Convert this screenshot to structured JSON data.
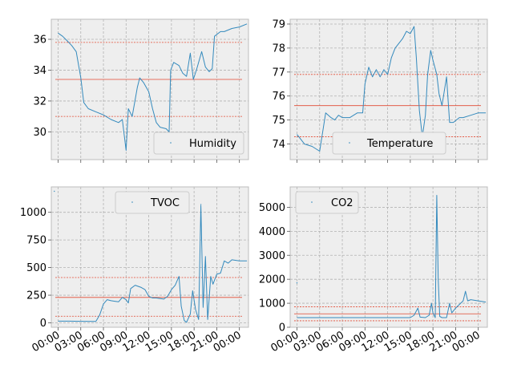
{
  "colors": {
    "figure_bg": "#ffffff",
    "axes_bg": "#eeeeee",
    "grid": "#b2b2b2",
    "frame": "#bcbcbc",
    "series": "#348abd",
    "hline": "#e24a33",
    "legend_bg": "#eeeeee",
    "legend_edge": "#cccccc"
  },
  "chart_data": [
    {
      "type": "line",
      "panel": "top-left",
      "series": [
        {
          "name": "Humidity"
        }
      ],
      "legend_loc": "lower-right",
      "ylim": [
        28.2,
        37.3
      ],
      "xlim": [
        -0.9,
        25.2
      ],
      "yticks": [
        30,
        32,
        34,
        36
      ],
      "ytick_labels": [
        "30",
        "32",
        "34",
        "36"
      ],
      "xticks": [
        0,
        3,
        6,
        9,
        12,
        15,
        18,
        21,
        24
      ],
      "xtick_labels": [],
      "hlines": [
        {
          "y": 35.8,
          "style": "dashed"
        },
        {
          "y": 33.4,
          "style": "solid"
        },
        {
          "y": 31.0,
          "style": "dashed"
        }
      ],
      "points": [
        [
          0,
          36.4
        ],
        [
          0.6,
          36.2
        ],
        [
          1.2,
          35.9
        ],
        [
          1.8,
          35.6
        ],
        [
          2.4,
          35.2
        ],
        [
          3,
          33.5
        ],
        [
          3.4,
          31.9
        ],
        [
          4,
          31.5
        ],
        [
          5,
          31.3
        ],
        [
          6,
          31.1
        ],
        [
          7,
          30.8
        ],
        [
          8,
          30.6
        ],
        [
          8.5,
          30.8
        ],
        [
          9,
          28.8
        ],
        [
          9.3,
          31.5
        ],
        [
          9.8,
          31.0
        ],
        [
          10.5,
          32.9
        ],
        [
          10.8,
          33.5
        ],
        [
          11.3,
          33.2
        ],
        [
          12,
          32.6
        ],
        [
          12.5,
          31.5
        ],
        [
          13,
          30.6
        ],
        [
          13.5,
          30.3
        ],
        [
          14.3,
          30.2
        ],
        [
          14.7,
          30.0
        ],
        [
          14.9,
          34.0
        ],
        [
          15.3,
          34.5
        ],
        [
          16,
          34.3
        ],
        [
          16.5,
          33.8
        ],
        [
          17,
          33.6
        ],
        [
          17.5,
          35.1
        ],
        [
          17.9,
          33.4
        ],
        [
          18.3,
          34.0
        ],
        [
          19,
          35.2
        ],
        [
          19.5,
          34.2
        ],
        [
          20,
          33.9
        ],
        [
          20.4,
          34.1
        ],
        [
          20.7,
          36.2
        ],
        [
          21.5,
          36.5
        ],
        [
          22,
          36.5
        ],
        [
          23,
          36.7
        ],
        [
          24,
          36.8
        ],
        [
          25,
          37.0
        ]
      ]
    },
    {
      "type": "line",
      "panel": "top-right",
      "series": [
        {
          "name": "Temperature"
        }
      ],
      "legend_loc": "lower-right",
      "ylim": [
        73.35,
        79.2
      ],
      "xlim": [
        -0.9,
        25.2
      ],
      "yticks": [
        74,
        75,
        76,
        77,
        78,
        79
      ],
      "ytick_labels": [
        "74",
        "75",
        "76",
        "77",
        "78",
        "79"
      ],
      "xticks": [
        0,
        3,
        6,
        9,
        12,
        15,
        18,
        21,
        24
      ],
      "xtick_labels": [],
      "hlines": [
        {
          "y": 76.9,
          "style": "dashed"
        },
        {
          "y": 75.6,
          "style": "solid"
        },
        {
          "y": 74.3,
          "style": "dashed"
        }
      ],
      "points": [
        [
          0,
          74.4
        ],
        [
          0.5,
          74.2
        ],
        [
          1,
          74.0
        ],
        [
          2,
          73.9
        ],
        [
          3,
          73.7
        ],
        [
          3.5,
          74.7
        ],
        [
          3.8,
          75.3
        ],
        [
          4.5,
          75.1
        ],
        [
          5,
          75.0
        ],
        [
          5.5,
          75.2
        ],
        [
          6,
          75.1
        ],
        [
          7,
          75.1
        ],
        [
          8,
          75.3
        ],
        [
          8.7,
          75.3
        ],
        [
          9,
          76.5
        ],
        [
          9.5,
          77.2
        ],
        [
          10,
          76.8
        ],
        [
          10.5,
          77.1
        ],
        [
          11,
          76.8
        ],
        [
          11.5,
          77.1
        ],
        [
          12,
          76.9
        ],
        [
          12.5,
          77.6
        ],
        [
          13,
          78.0
        ],
        [
          13.5,
          78.2
        ],
        [
          14,
          78.4
        ],
        [
          14.5,
          78.7
        ],
        [
          15,
          78.6
        ],
        [
          15.5,
          78.9
        ],
        [
          15.8,
          77.6
        ],
        [
          16.2,
          75.4
        ],
        [
          16.6,
          74.3
        ],
        [
          17,
          75.2
        ],
        [
          17.3,
          76.9
        ],
        [
          17.7,
          77.9
        ],
        [
          18,
          77.5
        ],
        [
          18.5,
          76.9
        ],
        [
          18.8,
          76.1
        ],
        [
          19.2,
          75.6
        ],
        [
          19.8,
          76.8
        ],
        [
          20.2,
          74.9
        ],
        [
          20.7,
          74.9
        ],
        [
          21.5,
          75.1
        ],
        [
          22,
          75.1
        ],
        [
          23,
          75.2
        ],
        [
          24,
          75.3
        ],
        [
          25,
          75.3
        ]
      ]
    },
    {
      "type": "line",
      "panel": "bottom-left",
      "series": [
        {
          "name": "TVOC"
        }
      ],
      "legend_loc": "upper-center",
      "ylim": [
        -40,
        1230
      ],
      "xlim": [
        -0.9,
        25.2
      ],
      "yticks": [
        0,
        250,
        500,
        750,
        1000
      ],
      "ytick_labels": [
        "0",
        "250",
        "500",
        "750",
        "1000"
      ],
      "xticks": [
        0,
        3,
        6,
        9,
        12,
        15,
        18,
        21,
        24
      ],
      "xtick_labels": [
        "00:00",
        "03:00",
        "06:00",
        "09:00",
        "12:00",
        "15:00",
        "18:00",
        "21:00",
        "00:00"
      ],
      "hlines": [
        {
          "y": 410,
          "style": "dashed"
        },
        {
          "y": 230,
          "style": "solid"
        },
        {
          "y": 60,
          "style": "dashed"
        }
      ],
      "points": [
        [
          0,
          15
        ],
        [
          1.5,
          15
        ],
        [
          3,
          14
        ],
        [
          5,
          13
        ],
        [
          5.5,
          70
        ],
        [
          6,
          170
        ],
        [
          6.5,
          210
        ],
        [
          7,
          200
        ],
        [
          7.5,
          195
        ],
        [
          8,
          190
        ],
        [
          8.5,
          230
        ],
        [
          9,
          210
        ],
        [
          9.3,
          180
        ],
        [
          9.6,
          310
        ],
        [
          10.2,
          340
        ],
        [
          11,
          320
        ],
        [
          11.5,
          300
        ],
        [
          12,
          240
        ],
        [
          12.5,
          225
        ],
        [
          13,
          225
        ],
        [
          14,
          215
        ],
        [
          14.5,
          240
        ],
        [
          15,
          300
        ],
        [
          15.5,
          340
        ],
        [
          16,
          420
        ],
        [
          16.3,
          150
        ],
        [
          16.7,
          20
        ],
        [
          17,
          5
        ],
        [
          17.5,
          80
        ],
        [
          17.8,
          290
        ],
        [
          18.2,
          120
        ],
        [
          18.6,
          30
        ],
        [
          18.9,
          1060
        ],
        [
          19.2,
          140
        ],
        [
          19.5,
          600
        ],
        [
          19.8,
          30
        ],
        [
          20.2,
          420
        ],
        [
          20.5,
          350
        ],
        [
          21,
          440
        ],
        [
          21.5,
          450
        ],
        [
          22,
          560
        ],
        [
          22.5,
          540
        ],
        [
          23,
          570
        ],
        [
          24,
          560
        ],
        [
          25,
          560
        ]
      ],
      "spikes": [
        [
          -0.5,
          1190
        ],
        [
          18.9,
          1070
        ]
      ]
    },
    {
      "type": "line",
      "panel": "bottom-right",
      "series": [
        {
          "name": "CO2"
        }
      ],
      "legend_loc": "upper-left",
      "ylim": [
        0,
        5850
      ],
      "xlim": [
        -0.9,
        25.2
      ],
      "yticks": [
        0,
        1000,
        2000,
        3000,
        4000,
        5000
      ],
      "ytick_labels": [
        "0",
        "1000",
        "2000",
        "3000",
        "4000",
        "5000"
      ],
      "xticks": [
        0,
        3,
        6,
        9,
        12,
        15,
        18,
        21,
        24
      ],
      "xtick_labels": [
        "00:00",
        "03:00",
        "06:00",
        "09:00",
        "12:00",
        "15:00",
        "18:00",
        "21:00",
        "00:00"
      ],
      "hlines": [
        {
          "y": 850,
          "style": "dashed"
        },
        {
          "y": 560,
          "style": "solid"
        },
        {
          "y": 270,
          "style": "dashed"
        }
      ],
      "points": [
        [
          0,
          400
        ],
        [
          3,
          400
        ],
        [
          6,
          400
        ],
        [
          9,
          400
        ],
        [
          12,
          400
        ],
        [
          15,
          400
        ],
        [
          15.5,
          500
        ],
        [
          16,
          800
        ],
        [
          16.3,
          420
        ],
        [
          17,
          400
        ],
        [
          17.5,
          500
        ],
        [
          17.8,
          1000
        ],
        [
          18,
          600
        ],
        [
          18.3,
          400
        ],
        [
          18.5,
          5500
        ],
        [
          18.7,
          2000
        ],
        [
          18.9,
          450
        ],
        [
          19.2,
          400
        ],
        [
          19.8,
          400
        ],
        [
          20.2,
          1000
        ],
        [
          20.5,
          600
        ],
        [
          21,
          800
        ],
        [
          21.5,
          950
        ],
        [
          22,
          1100
        ],
        [
          22.3,
          1500
        ],
        [
          22.6,
          1100
        ],
        [
          23,
          1150
        ],
        [
          24,
          1100
        ],
        [
          25,
          1050
        ]
      ],
      "spikes": [
        [
          0,
          1850
        ]
      ]
    }
  ]
}
